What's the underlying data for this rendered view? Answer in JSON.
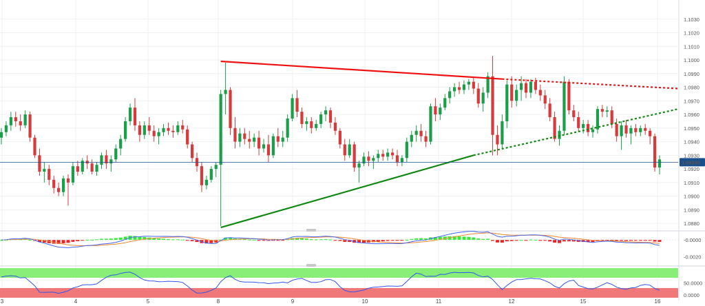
{
  "chart_data": [
    {
      "type": "candlestick",
      "price_axis": {
        "ticks": [
          "1.1030",
          "1.1020",
          "1.1010",
          "1.1000",
          "1.0990",
          "1.0980",
          "1.0970",
          "1.0960",
          "1.0950",
          "1.0940",
          "1.0930",
          "1.0920",
          "1.0910",
          "1.0900",
          "1.0890",
          "1.0880"
        ],
        "range": [
          1.0875,
          1.104
        ]
      },
      "date_axis": {
        "ticks": [
          "3",
          "4",
          "5",
          "8",
          "9",
          "10",
          "11",
          "12",
          "15",
          "16"
        ]
      },
      "last_price": "1.09249",
      "candles": [
        [
          1.0943,
          1.095,
          1.0938,
          1.0947
        ],
        [
          1.0947,
          1.0955,
          1.0944,
          1.0952
        ],
        [
          1.0952,
          1.0962,
          1.0948,
          1.0958
        ],
        [
          1.0958,
          1.0962,
          1.0951,
          1.0955
        ],
        [
          1.0955,
          1.096,
          1.0948,
          1.0952
        ],
        [
          1.0952,
          1.0963,
          1.095,
          1.096
        ],
        [
          1.096,
          1.0962,
          1.094,
          1.0943
        ],
        [
          1.0943,
          1.0945,
          1.0928,
          1.093
        ],
        [
          1.093,
          1.0935,
          1.0915,
          1.0918
        ],
        [
          1.0918,
          1.0925,
          1.091,
          1.092
        ],
        [
          1.092,
          1.0923,
          1.0908,
          1.0912
        ],
        [
          1.0912,
          1.0915,
          1.0902,
          1.0906
        ],
        [
          1.0906,
          1.091,
          1.09,
          1.0903
        ],
        [
          1.0903,
          1.0915,
          1.09,
          1.0913
        ],
        [
          1.0913,
          1.0916,
          1.0893,
          1.091
        ],
        [
          1.091,
          1.0925,
          1.0908,
          1.0922
        ],
        [
          1.0922,
          1.0926,
          1.0915,
          1.0918
        ],
        [
          1.0918,
          1.0928,
          1.0916,
          1.0926
        ],
        [
          1.0926,
          1.093,
          1.092,
          1.0924
        ],
        [
          1.0924,
          1.0927,
          1.0916,
          1.0918
        ],
        [
          1.0918,
          1.0925,
          1.0915,
          1.0923
        ],
        [
          1.0923,
          1.0932,
          1.092,
          1.093
        ],
        [
          1.093,
          1.0934,
          1.092,
          1.0924
        ],
        [
          1.0924,
          1.093,
          1.0918,
          1.0927
        ],
        [
          1.0927,
          1.0938,
          1.0925,
          1.0935
        ],
        [
          1.0935,
          1.0945,
          1.093,
          1.0942
        ],
        [
          1.0942,
          1.0958,
          1.094,
          1.0955
        ],
        [
          1.0955,
          1.0968,
          1.0952,
          1.0965
        ],
        [
          1.0965,
          1.0972,
          1.0948,
          1.0952
        ],
        [
          1.0952,
          1.0955,
          1.094,
          1.0945
        ],
        [
          1.0945,
          1.0955,
          1.0942,
          1.0952
        ],
        [
          1.0952,
          1.0958,
          1.0945,
          1.0948
        ],
        [
          1.0948,
          1.0952,
          1.094,
          1.0944
        ],
        [
          1.0944,
          1.095,
          1.0938,
          1.0947
        ],
        [
          1.0947,
          1.0953,
          1.0944,
          1.095
        ],
        [
          1.095,
          1.0954,
          1.0945,
          1.0948
        ],
        [
          1.0948,
          1.0952,
          1.0943,
          1.0947
        ],
        [
          1.0947,
          1.0955,
          1.0945,
          1.0952
        ],
        [
          1.0952,
          1.0956,
          1.0946,
          1.0949
        ],
        [
          1.0949,
          1.0952,
          1.0935,
          1.0938
        ],
        [
          1.0938,
          1.094,
          1.0925,
          1.0928
        ],
        [
          1.0928,
          1.0932,
          1.0918,
          1.0922
        ],
        [
          1.0922,
          1.0925,
          1.0903,
          1.0908
        ],
        [
          1.0908,
          1.0915,
          1.0905,
          1.0912
        ],
        [
          1.0912,
          1.0922,
          1.091,
          1.092
        ],
        [
          1.092,
          1.0925,
          1.0914,
          1.0923
        ],
        [
          1.0923,
          1.0978,
          1.0878,
          1.0975
        ],
        [
          1.0975,
          1.0998,
          1.096,
          1.0978
        ],
        [
          1.0978,
          1.098,
          1.0945,
          1.095
        ],
        [
          1.095,
          1.0958,
          1.0935,
          1.094
        ],
        [
          1.094,
          1.095,
          1.0936,
          1.0946
        ],
        [
          1.0946,
          1.095,
          1.0938,
          1.0942
        ],
        [
          1.0942,
          1.0948,
          1.0935,
          1.094
        ],
        [
          1.094,
          1.0946,
          1.0936,
          1.0943
        ],
        [
          1.0943,
          1.0948,
          1.093,
          1.0935
        ],
        [
          1.0935,
          1.0942,
          1.0932,
          1.0938
        ],
        [
          1.0938,
          1.0945,
          1.0925,
          1.093
        ],
        [
          1.093,
          1.0946,
          1.0928,
          1.0944
        ],
        [
          1.0944,
          1.095,
          1.0936,
          1.094
        ],
        [
          1.094,
          1.0948,
          1.0936,
          1.0943
        ],
        [
          1.0943,
          1.096,
          1.094,
          1.0957
        ],
        [
          1.0957,
          1.0975,
          1.0955,
          1.0972
        ],
        [
          1.0972,
          1.0978,
          1.0958,
          1.0962
        ],
        [
          1.0962,
          1.0965,
          1.095,
          1.0953
        ],
        [
          1.0953,
          1.0958,
          1.0948,
          1.0955
        ],
        [
          1.0955,
          1.0958,
          1.0946,
          1.095
        ],
        [
          1.095,
          1.0956,
          1.0948,
          1.0953
        ],
        [
          1.0953,
          1.0962,
          1.095,
          1.096
        ],
        [
          1.096,
          1.0966,
          1.0955,
          1.0963
        ],
        [
          1.0963,
          1.0965,
          1.095,
          1.0954
        ],
        [
          1.0954,
          1.0958,
          1.0945,
          1.0948
        ],
        [
          1.0948,
          1.095,
          1.0935,
          1.0938
        ],
        [
          1.0938,
          1.0942,
          1.0926,
          1.093
        ],
        [
          1.093,
          1.0942,
          1.0928,
          1.0938
        ],
        [
          1.0938,
          1.094,
          1.0918,
          1.0921
        ],
        [
          1.0921,
          1.0926,
          1.091,
          1.0924
        ],
        [
          1.0924,
          1.0932,
          1.0922,
          1.0929
        ],
        [
          1.0929,
          1.0933,
          1.0922,
          1.0926
        ],
        [
          1.0926,
          1.093,
          1.092,
          1.0928
        ],
        [
          1.0928,
          1.0934,
          1.0925,
          1.0931
        ],
        [
          1.0931,
          1.0934,
          1.0926,
          1.0929
        ],
        [
          1.0929,
          1.0935,
          1.0926,
          1.0932
        ],
        [
          1.0932,
          1.0935,
          1.0927,
          1.093
        ],
        [
          1.093,
          1.0934,
          1.0922,
          1.0925
        ],
        [
          1.0925,
          1.093,
          1.0922,
          1.0928
        ],
        [
          1.0928,
          1.0943,
          1.0925,
          1.094
        ],
        [
          1.094,
          1.0948,
          1.0936,
          1.0945
        ],
        [
          1.0945,
          1.0952,
          1.094,
          1.0948
        ],
        [
          1.0948,
          1.0953,
          1.094,
          1.0944
        ],
        [
          1.0944,
          1.0948,
          1.0936,
          1.094
        ],
        [
          1.094,
          1.0968,
          1.0938,
          1.0966
        ],
        [
          1.0966,
          1.0972,
          1.0955,
          1.096
        ],
        [
          1.096,
          1.0968,
          1.0956,
          1.0965
        ],
        [
          1.0965,
          1.0975,
          1.0963,
          1.0972
        ],
        [
          1.0972,
          1.098,
          1.0968,
          1.0977
        ],
        [
          1.0977,
          1.0983,
          1.0973,
          1.098
        ],
        [
          1.098,
          1.0984,
          1.0975,
          1.0978
        ],
        [
          1.0978,
          1.0985,
          1.0975,
          1.0982
        ],
        [
          1.0982,
          1.0986,
          1.0978,
          1.0984
        ],
        [
          1.0984,
          1.0987,
          1.0975,
          1.0979
        ],
        [
          1.0979,
          1.0983,
          1.0965,
          1.0968
        ],
        [
          1.0968,
          1.098,
          1.0962,
          1.0976
        ],
        [
          1.0976,
          1.0991,
          1.0972,
          1.0988
        ],
        [
          1.0988,
          1.1003,
          1.093,
          1.0945
        ],
        [
          1.0945,
          1.0952,
          1.093,
          1.0938
        ],
        [
          1.0938,
          1.096,
          1.0935,
          1.0955
        ],
        [
          1.0955,
          1.0985,
          1.095,
          1.0982
        ],
        [
          1.0982,
          1.0988,
          1.0965,
          1.097
        ],
        [
          1.097,
          1.0982,
          1.0966,
          1.0978
        ],
        [
          1.0978,
          1.0988,
          1.097,
          1.0983
        ],
        [
          1.0983,
          1.0986,
          1.0972,
          1.0976
        ],
        [
          1.0976,
          1.0986,
          1.0972,
          1.0984
        ],
        [
          1.0984,
          1.0987,
          1.0975,
          1.0978
        ],
        [
          1.0978,
          1.0982,
          1.097,
          1.0974
        ],
        [
          1.0974,
          1.0978,
          1.0964,
          1.0968
        ],
        [
          1.0968,
          1.0972,
          1.0955,
          1.0958
        ],
        [
          1.0958,
          1.0962,
          1.094,
          1.0942
        ],
        [
          1.0942,
          1.0952,
          1.0937,
          1.0948
        ],
        [
          1.0948,
          1.0988,
          1.0945,
          1.0984
        ],
        [
          1.0984,
          1.0986,
          1.096,
          1.0963
        ],
        [
          1.0963,
          1.0967,
          1.0955,
          1.0958
        ],
        [
          1.0958,
          1.0962,
          1.0947,
          1.095
        ],
        [
          1.095,
          1.0956,
          1.0946,
          1.0953
        ],
        [
          1.0953,
          1.0956,
          1.0944,
          1.0947
        ],
        [
          1.0947,
          1.0952,
          1.0943,
          1.0949
        ],
        [
          1.0949,
          1.0966,
          1.0946,
          1.0964
        ],
        [
          1.0964,
          1.0967,
          1.0958,
          1.0962
        ],
        [
          1.0962,
          1.0966,
          1.0958,
          1.0963
        ],
        [
          1.0963,
          1.0966,
          1.095,
          1.0953
        ],
        [
          1.0953,
          1.0957,
          1.094,
          1.0944
        ],
        [
          1.0944,
          1.0955,
          1.0934,
          1.0952
        ],
        [
          1.0952,
          1.0956,
          1.0943,
          1.0946
        ],
        [
          1.0946,
          1.0952,
          1.0938,
          1.095
        ],
        [
          1.095,
          1.0953,
          1.0944,
          1.0947
        ],
        [
          1.0947,
          1.0952,
          1.0944,
          1.095
        ],
        [
          1.095,
          1.0953,
          1.0945,
          1.0948
        ],
        [
          1.0948,
          1.095,
          1.0938,
          1.0944
        ],
        [
          1.0944,
          1.0946,
          1.0918,
          1.0921
        ],
        [
          1.0921,
          1.093,
          1.0916,
          1.0927
        ]
      ],
      "trendlines": [
        {
          "name": "resistance",
          "color": "#ee1111",
          "style": "solid",
          "from": [
            46,
            1.0999
          ],
          "to": [
            105,
            1.0986
          ]
        },
        {
          "name": "resistance",
          "color": "#ee1111",
          "style": "dotted",
          "from": [
            105,
            1.0986
          ],
          "to": [
            149,
            1.0979
          ]
        },
        {
          "name": "support",
          "color": "#118811",
          "style": "solid",
          "from": [
            46,
            1.0877
          ],
          "to": [
            99,
            1.093
          ]
        },
        {
          "name": "support",
          "color": "#118811",
          "style": "dotted",
          "from": [
            99,
            1.093
          ],
          "to": [
            146,
            1.0964
          ]
        }
      ],
      "colors": {
        "up": "#1a9e48",
        "down": "#d63a3a",
        "price_line": "#1b4f8a",
        "price_badge": "#1b4f8a"
      }
    },
    {
      "type": "histogram",
      "name": "oscillator",
      "y_axis": {
        "ticks": [
          "-0.0000",
          "-0.0020"
        ],
        "range": [
          -0.0028,
          0.001
        ]
      },
      "colors": {
        "positive": "#33ee33",
        "negative": "#ee2222",
        "line_a": "#4466ee",
        "line_b": "#ee8833"
      }
    },
    {
      "type": "band",
      "name": "band-indicator",
      "y_axis": {
        "ticks": [
          "50.0000",
          "0.0000"
        ],
        "range": [
          0,
          100
        ]
      },
      "colors": {
        "upper_band": "#88ee77",
        "lower_band": "#f07878",
        "line": "#3355ee"
      }
    }
  ]
}
